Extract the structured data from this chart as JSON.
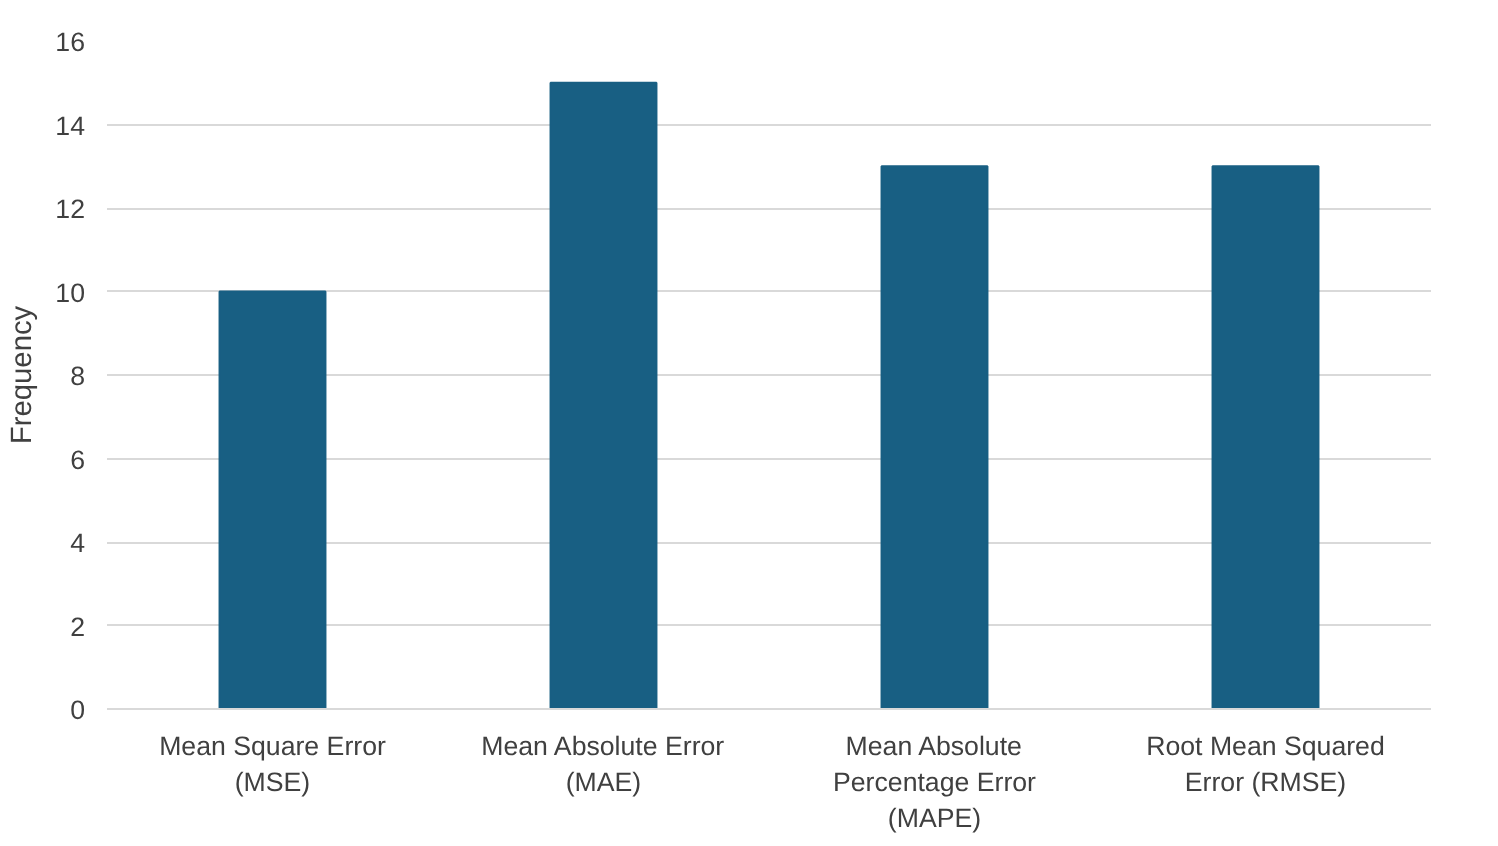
{
  "chart_data": {
    "type": "bar",
    "ylabel": "Frequency",
    "categories": [
      "Mean Square Error (MSE)",
      "Mean Absolute Error (MAE)",
      "Mean Absolute Percentage Error (MAPE)",
      "Root Mean Squared Error (RMSE)"
    ],
    "values": [
      10,
      15,
      13,
      13
    ],
    "color": "#185f83",
    "ylim": [
      0,
      16
    ],
    "yticks": [
      0,
      2,
      4,
      6,
      8,
      10,
      12,
      14,
      16
    ],
    "grid": "y"
  }
}
